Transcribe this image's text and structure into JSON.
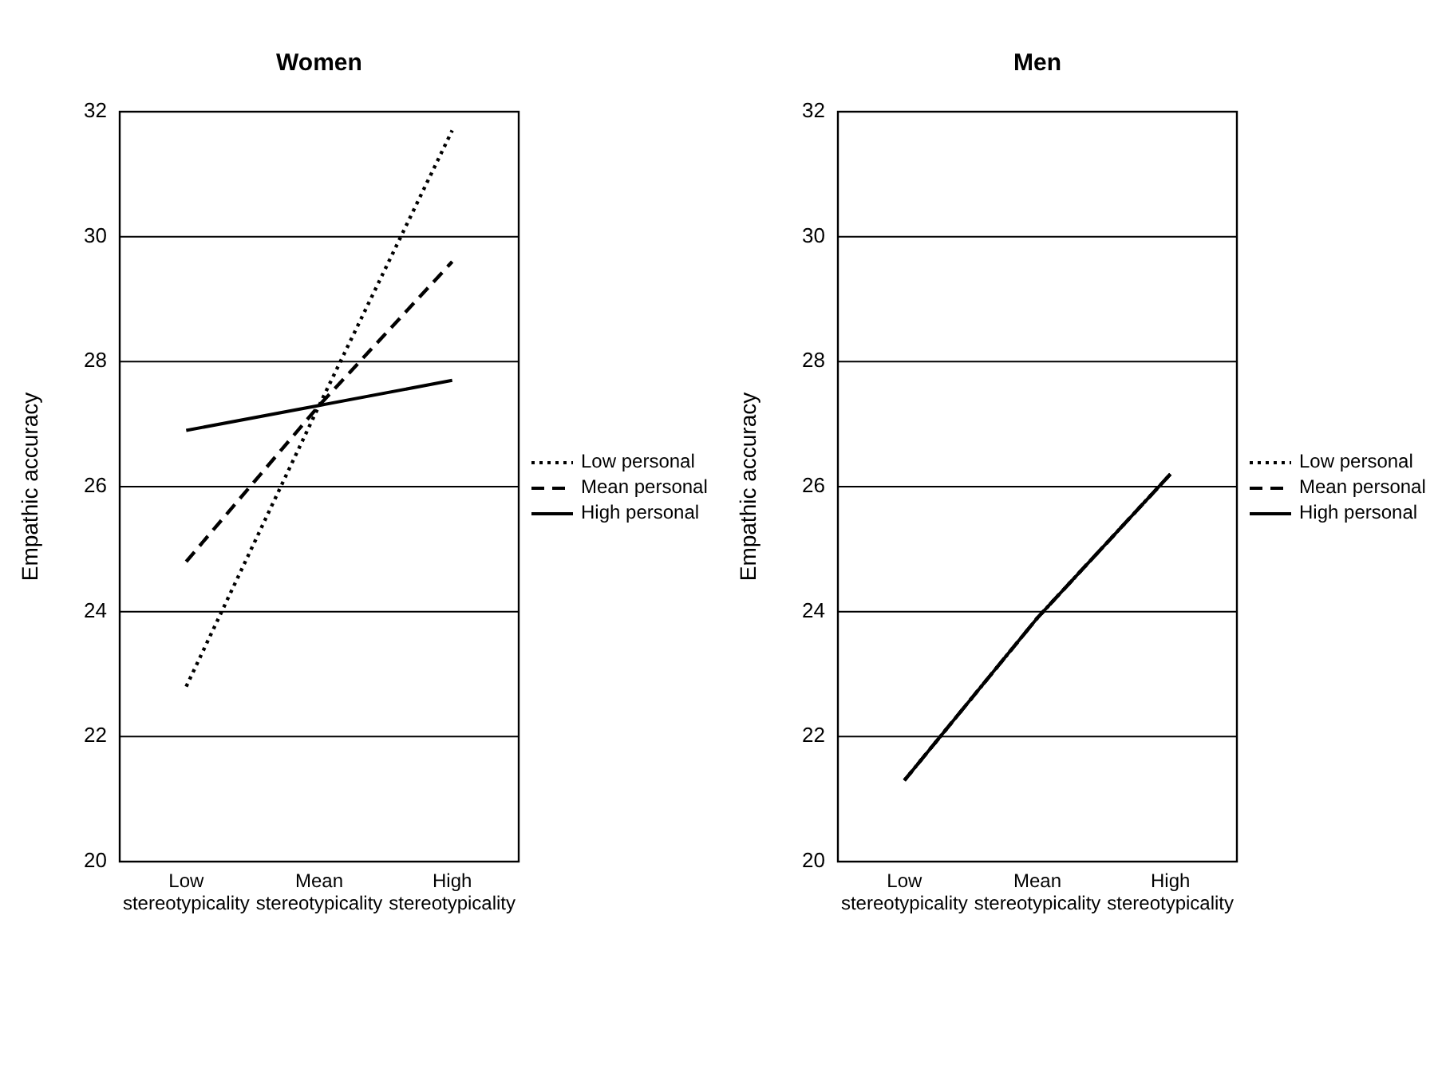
{
  "chart_data": [
    {
      "type": "line",
      "title": "Women",
      "ylabel": "Empathic accuracy",
      "categories": [
        "Low stereotypicality",
        "Mean stereotypicality",
        "High stereotypicality"
      ],
      "ylim": [
        20,
        32
      ],
      "yticks": [
        20,
        22,
        24,
        26,
        28,
        30,
        32
      ],
      "grid": "y",
      "legend": "right",
      "marker": "none",
      "series": [
        {
          "name": "Low personal",
          "color": "#000000",
          "line_style": "dotted",
          "values": [
            22.8,
            27.3,
            31.7
          ]
        },
        {
          "name": "Mean personal",
          "color": "#000000",
          "line_style": "dashed",
          "values": [
            24.8,
            27.3,
            29.6
          ]
        },
        {
          "name": "High personal",
          "color": "#000000",
          "line_style": "solid",
          "values": [
            26.9,
            27.3,
            27.7
          ]
        }
      ]
    },
    {
      "type": "line",
      "title": "Men",
      "ylabel": "Empathic accuracy",
      "categories": [
        "Low stereotypicality",
        "Mean stereotypicality",
        "High stereotypicality"
      ],
      "ylim": [
        20,
        32
      ],
      "yticks": [
        20,
        22,
        24,
        26,
        28,
        30,
        32
      ],
      "grid": "y",
      "legend": "right",
      "marker": "none",
      "series": [
        {
          "name": "Low personal",
          "color": "#000000",
          "line_style": "dotted",
          "values": [
            21.3,
            23.9,
            26.2
          ]
        },
        {
          "name": "Mean personal",
          "color": "#000000",
          "line_style": "dashed",
          "values": [
            21.3,
            23.9,
            26.2
          ]
        },
        {
          "name": "High personal",
          "color": "#000000",
          "line_style": "solid",
          "values": [
            21.3,
            23.9,
            26.2
          ]
        }
      ]
    }
  ]
}
